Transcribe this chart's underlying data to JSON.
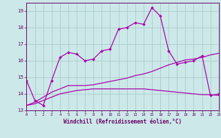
{
  "bg_color": "#cce8e8",
  "grid_color": "#aacccc",
  "line_color": "#aa00aa",
  "xlabel": "Windchill (Refroidissement éolien,°C)",
  "x_values": [
    0,
    1,
    2,
    3,
    4,
    5,
    6,
    7,
    8,
    9,
    10,
    11,
    12,
    13,
    14,
    15,
    16,
    17,
    18,
    19,
    20,
    21,
    22,
    23
  ],
  "line1": [
    14.8,
    13.6,
    13.3,
    14.8,
    16.2,
    16.5,
    16.4,
    16.0,
    16.1,
    16.6,
    16.7,
    17.9,
    18.0,
    18.3,
    18.2,
    19.2,
    18.7,
    16.6,
    15.8,
    15.9,
    16.0,
    16.3,
    13.9,
    14.0
  ],
  "line2": [
    13.3,
    13.5,
    13.8,
    14.1,
    14.3,
    14.5,
    14.5,
    14.5,
    14.55,
    14.65,
    14.75,
    14.85,
    14.95,
    15.1,
    15.2,
    15.35,
    15.55,
    15.75,
    15.9,
    16.05,
    16.1,
    16.2,
    16.35,
    16.45
  ],
  "line3": [
    13.3,
    13.4,
    13.6,
    13.8,
    14.0,
    14.1,
    14.2,
    14.25,
    14.3,
    14.3,
    14.3,
    14.3,
    14.3,
    14.3,
    14.3,
    14.25,
    14.2,
    14.15,
    14.1,
    14.05,
    14.0,
    13.95,
    13.95,
    13.9
  ],
  "ylim": [
    13.0,
    19.5
  ],
  "yticks": [
    13,
    14,
    15,
    16,
    17,
    18,
    19
  ],
  "xlim": [
    0,
    23
  ],
  "tick_color": "#660066",
  "spine_color": "#660066"
}
